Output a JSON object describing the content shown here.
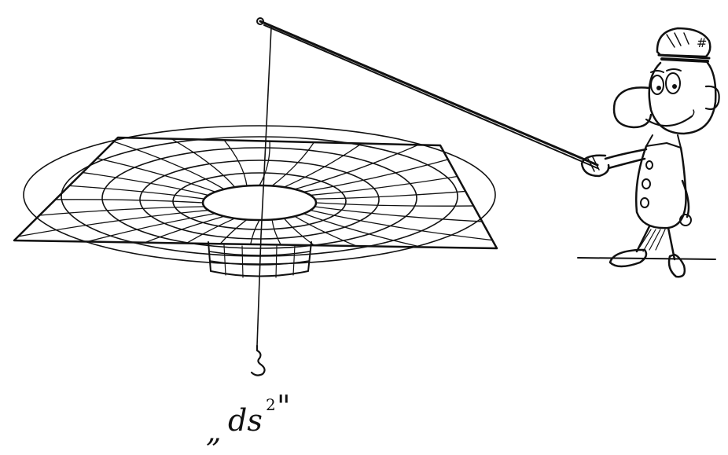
{
  "caption": {
    "open_quote": "„",
    "text": "ds",
    "superscript": "2",
    "close_quote": "\""
  },
  "colors": {
    "ink": "#111111",
    "paper": "#ffffff"
  },
  "icons": {
    "cap_badge": "#"
  }
}
